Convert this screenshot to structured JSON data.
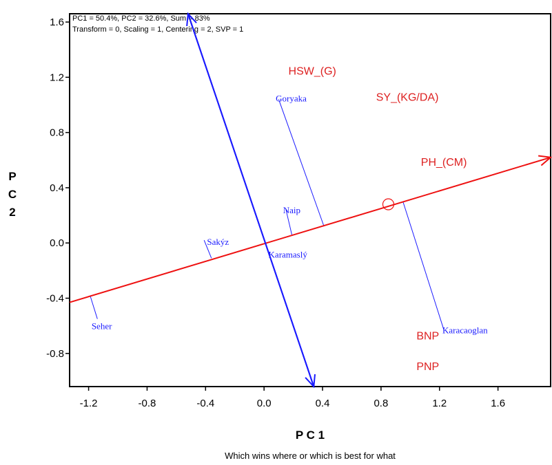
{
  "chart_data": {
    "type": "scatter",
    "title": "Which wins where or which is best for what",
    "info_lines": [
      "PC1 = 50.4%, PC2 = 32.6%, Sum = 83%",
      "Transform = 0, Scaling = 1, Centering = 2, SVP = 1"
    ],
    "xlabel": "P C 1",
    "ylabel": [
      "P",
      "C",
      "2"
    ],
    "xlim": [
      -1.33,
      1.96
    ],
    "ylim": [
      -1.04,
      1.66
    ],
    "xticks": [
      "-1.2",
      "-0.8",
      "-0.4",
      "0.0",
      "0.4",
      "0.8",
      "1.2",
      "1.6"
    ],
    "yticks": [
      "-0.8",
      "-0.4",
      "0.0",
      "0.4",
      "0.8",
      "1.2",
      "1.6"
    ],
    "genotypes": [
      {
        "name": "Goryaka",
        "x": 0.08,
        "y": 1.05
      },
      {
        "name": "Naip",
        "x": 0.13,
        "y": 0.24
      },
      {
        "name": "Sakýz",
        "x": -0.39,
        "y": 0.01
      },
      {
        "name": "Karamaslý",
        "x": 0.03,
        "y": -0.08
      },
      {
        "name": "Seher",
        "x": -1.18,
        "y": -0.6
      },
      {
        "name": "Karacaoglan",
        "x": 1.22,
        "y": -0.63
      }
    ],
    "traits": [
      {
        "name": "HSW_(G)",
        "x": 0.33,
        "y": 1.25
      },
      {
        "name": "SY_(KG/DA)",
        "x": 0.98,
        "y": 1.06
      },
      {
        "name": "PH_(CM)",
        "x": 1.23,
        "y": 0.59
      },
      {
        "name": "BNP",
        "x": 1.12,
        "y": -0.67
      },
      {
        "name": "PNP",
        "x": 1.12,
        "y": -0.89
      }
    ],
    "ate_axis": {
      "from": [
        -1.33,
        -0.43
      ],
      "to": [
        1.96,
        0.62
      ],
      "color": "#ee1111",
      "marker": {
        "x": 0.85,
        "y": 0.28
      }
    },
    "ate_ordinate": {
      "from": [
        -0.52,
        1.66
      ],
      "to": [
        0.34,
        -1.04
      ],
      "color": "#1a1aff"
    },
    "projections": [
      {
        "from": [
          0.1,
          1.04
        ],
        "to": [
          0.41,
          0.12
        ]
      },
      {
        "from": [
          0.15,
          0.24
        ],
        "to": [
          0.19,
          0.06
        ]
      },
      {
        "from": [
          -0.41,
          0.02
        ],
        "to": [
          -0.36,
          -0.11
        ]
      },
      {
        "from": [
          -1.14,
          -0.55
        ],
        "to": [
          -1.19,
          -0.38
        ]
      },
      {
        "from": [
          1.23,
          -0.63
        ],
        "to": [
          0.95,
          0.3
        ]
      }
    ],
    "colors": {
      "genotype": "#1a1aff",
      "trait": "#dd2020",
      "frame": "#000000"
    }
  }
}
